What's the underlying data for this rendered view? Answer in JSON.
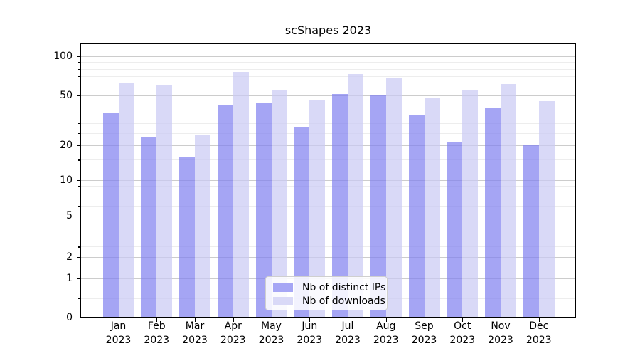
{
  "chart_data": {
    "type": "bar",
    "title": "scShapes 2023",
    "categories": [
      "Jan 2023",
      "Feb 2023",
      "Mar 2023",
      "Apr 2023",
      "May 2023",
      "Jun 2023",
      "Jul 2023",
      "Aug 2023",
      "Sep 2023",
      "Oct 2023",
      "Nov 2023",
      "Dec 2023"
    ],
    "x_axis": {
      "months": [
        "Jan",
        "Feb",
        "Mar",
        "Apr",
        "May",
        "Jun",
        "Jul",
        "Aug",
        "Sep",
        "Oct",
        "Nov",
        "Dec"
      ],
      "year": "2023"
    },
    "y_axis": {
      "scale": "symlog",
      "major_ticks": [
        0,
        1,
        2,
        5,
        10,
        20,
        50,
        100
      ],
      "minor_ticks": [
        0.5,
        1.5,
        2.5,
        3,
        4,
        6,
        7,
        8,
        9,
        15,
        25,
        30,
        40,
        60,
        70,
        80,
        90
      ],
      "ylim": [
        0,
        126
      ]
    },
    "series": [
      {
        "name": "Nb of distinct IPs",
        "color": "#a6a6f5",
        "fill": "rgba(127,127,240,0.7)",
        "values": [
          36,
          23,
          16,
          42,
          43,
          28,
          51,
          50,
          35,
          21,
          40,
          20
        ]
      },
      {
        "name": "Nb of downloads",
        "color": "#d9d9f7",
        "fill": "rgba(201,201,244,0.7)",
        "values": [
          62,
          59,
          24,
          76,
          54,
          46,
          73,
          67,
          47,
          54,
          61,
          45
        ]
      }
    ],
    "legend": {
      "position": "lower center",
      "entries": [
        "Nb of distinct IPs",
        "Nb of downloads"
      ]
    },
    "grid": true
  },
  "colors": {
    "background": "#ffffff",
    "grid_major": "#cccccc",
    "grid_minor": "#ededed",
    "spine": "#000000"
  }
}
